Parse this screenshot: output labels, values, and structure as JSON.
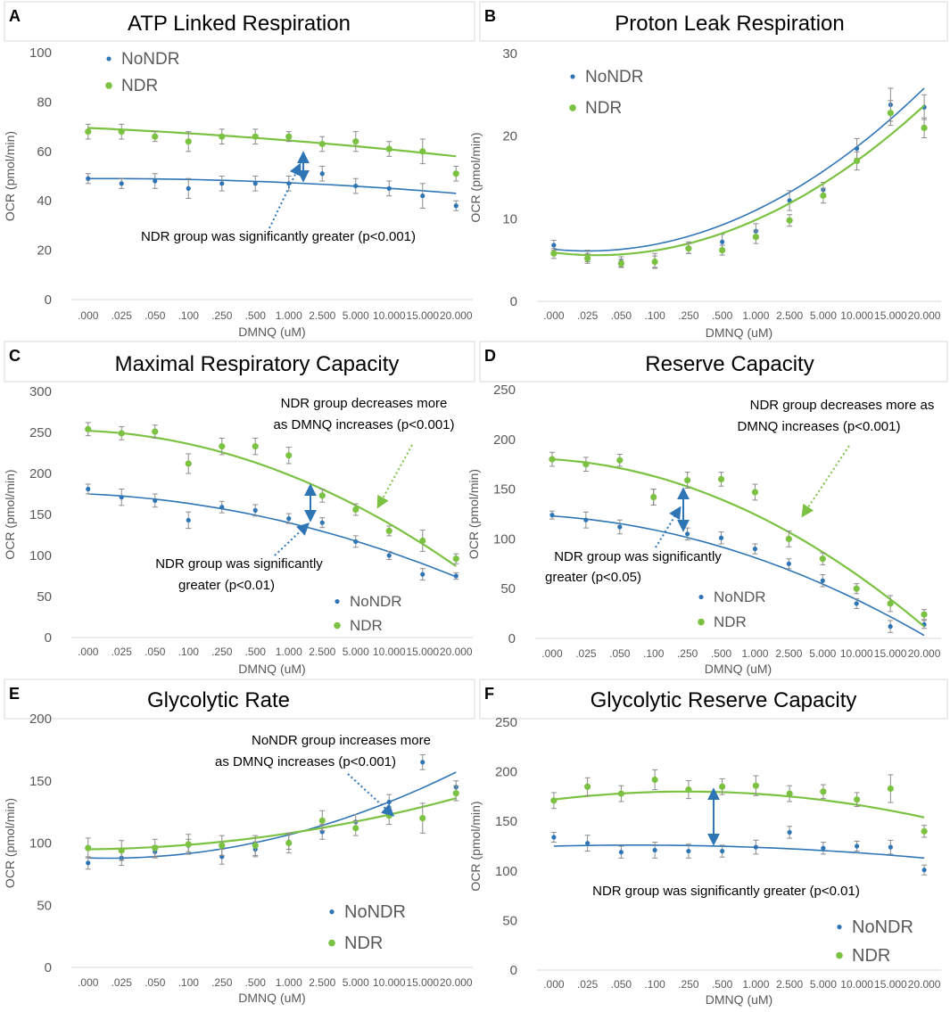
{
  "figure": {
    "xlabel": "DMNQ (uM)",
    "ylabel": "OCR (pmol/min)",
    "categories": [
      ".000",
      ".025",
      ".050",
      ".100",
      ".250",
      ".500",
      "1.000",
      "2.500",
      "5.000",
      "10.000",
      "15.000",
      "20.000"
    ],
    "legend": [
      "NoNDR",
      "NDR"
    ],
    "colors": {
      "NoNDR": "#2e75b6",
      "NDR": "#7cc242",
      "text": "#333333",
      "axis": "#595959",
      "errorbar": "#8c8c8c",
      "panelBorder": "#d9d9d9"
    }
  },
  "chart_data": [
    {
      "panel": "A",
      "type": "scatter",
      "title": "ATP Linked Respiration",
      "ylim": [
        0,
        100
      ],
      "yticks": [
        0,
        20,
        40,
        60,
        80,
        100
      ],
      "series": [
        {
          "name": "NoNDR",
          "values": [
            49,
            47,
            48,
            45,
            47,
            47,
            47,
            51,
            46,
            45,
            42,
            38
          ],
          "errors": [
            2,
            2,
            3,
            4,
            3,
            3,
            3,
            3,
            3,
            3,
            5,
            2
          ],
          "trend": [
            49,
            43
          ]
        },
        {
          "name": "NDR",
          "values": [
            68,
            68,
            66,
            64,
            66,
            66,
            66,
            63,
            64,
            61,
            60,
            51
          ],
          "errors": [
            3,
            3,
            2,
            4,
            3,
            3,
            2,
            3,
            4,
            3,
            5,
            3
          ],
          "trend": [
            69.5,
            58
          ]
        }
      ],
      "annotations": [
        {
          "text": "NDR group was significantly greater (p<0.001)"
        }
      ]
    },
    {
      "panel": "B",
      "type": "scatter",
      "title": "Proton Leak Respiration",
      "ylim": [
        0,
        30
      ],
      "yticks": [
        0,
        10,
        20,
        30
      ],
      "series": [
        {
          "name": "NoNDR",
          "values": [
            6.8,
            5.5,
            4.8,
            4.9,
            6.5,
            7.2,
            8.5,
            12.2,
            13.5,
            18.5,
            23.8,
            23.5
          ],
          "errors": [
            0.6,
            0.7,
            0.6,
            0.9,
            0.7,
            0.9,
            0.9,
            1.2,
            0.9,
            1.2,
            2.0,
            1.5
          ],
          "trend": [
            6.3,
            25.8
          ]
        },
        {
          "name": "NDR",
          "values": [
            5.8,
            5.2,
            4.6,
            4.8,
            6.4,
            6.2,
            7.8,
            9.8,
            12.8,
            17.0,
            22.8,
            21.0
          ],
          "errors": [
            0.6,
            0.6,
            0.5,
            0.7,
            0.6,
            0.6,
            0.8,
            0.7,
            0.9,
            1.1,
            1.5,
            1.2
          ],
          "trend": [
            5.9,
            23.7
          ]
        }
      ],
      "legendPlacement": "top-left"
    },
    {
      "panel": "C",
      "type": "scatter",
      "title": "Maximal Respiratory Capacity",
      "ylim": [
        0,
        300
      ],
      "yticks": [
        0,
        50,
        100,
        150,
        200,
        250,
        300
      ],
      "series": [
        {
          "name": "NoNDR",
          "values": [
            181,
            171,
            167,
            143,
            159,
            155,
            145,
            140,
            117,
            100,
            77,
            75
          ],
          "errors": [
            6,
            10,
            8,
            10,
            7,
            7,
            6,
            6,
            7,
            5,
            7,
            4
          ],
          "trend": [
            175,
            74
          ]
        },
        {
          "name": "NDR",
          "values": [
            254,
            249,
            251,
            212,
            233,
            233,
            222,
            173,
            156,
            130,
            118,
            96
          ],
          "errors": [
            8,
            8,
            8,
            12,
            10,
            10,
            10,
            8,
            7,
            6,
            13,
            6
          ],
          "trend": [
            252,
            87
          ]
        }
      ],
      "annotations": [
        {
          "text": "NDR group decreases more"
        },
        {
          "text": "as DMNQ increases (p<0.001)"
        },
        {
          "text": "NDR group was significantly"
        },
        {
          "text": "greater (p<0.01)"
        }
      ]
    },
    {
      "panel": "D",
      "type": "scatter",
      "title": "Reserve Capacity",
      "ylim": [
        0,
        250
      ],
      "yticks": [
        0,
        50,
        100,
        150,
        200,
        250
      ],
      "series": [
        {
          "name": "NoNDR",
          "values": [
            124,
            119,
            112,
            142,
            105,
            101,
            90,
            75,
            58,
            35,
            12,
            14
          ],
          "errors": [
            4,
            8,
            7,
            8,
            6,
            6,
            5,
            5,
            6,
            5,
            6,
            4
          ],
          "trend": [
            123,
            3
          ]
        },
        {
          "name": "NDR",
          "values": [
            180,
            175,
            179,
            142,
            159,
            160,
            147,
            100,
            80,
            50,
            35,
            24
          ],
          "errors": [
            7,
            7,
            6,
            8,
            8,
            7,
            8,
            8,
            6,
            5,
            8,
            5
          ],
          "trend": [
            180,
            12
          ]
        }
      ],
      "annotations": [
        {
          "text": "NDR group decreases more as"
        },
        {
          "text": "DMNQ increases (p<0.001)"
        },
        {
          "text": "NDR group was significantly"
        },
        {
          "text": "greater (p<0.05)"
        }
      ]
    },
    {
      "panel": "E",
      "type": "scatter",
      "title": "Glycolytic Rate",
      "ylim": [
        0,
        200
      ],
      "yticks": [
        0,
        50,
        100,
        150,
        200
      ],
      "series": [
        {
          "name": "NoNDR",
          "values": [
            84,
            88,
            93,
            98,
            89,
            95,
            101,
            109,
            117,
            133,
            165,
            145
          ],
          "errors": [
            5,
            6,
            5,
            5,
            6,
            6,
            6,
            6,
            6,
            6,
            6,
            5
          ],
          "trend": [
            88,
            157
          ]
        },
        {
          "name": "NDR",
          "values": [
            96,
            94,
            96,
            99,
            98,
            98,
            100,
            118,
            112,
            122,
            120,
            140
          ],
          "errors": [
            8,
            8,
            7,
            8,
            8,
            8,
            8,
            8,
            6,
            7,
            12,
            6
          ],
          "trend": [
            95,
            136
          ]
        }
      ],
      "annotations": [
        {
          "text": "NoNDR group increases more"
        },
        {
          "text": "as DMNQ increases (p<0.001)"
        }
      ]
    },
    {
      "panel": "F",
      "type": "scatter",
      "title": "Glycolytic Reserve Capacity",
      "ylim": [
        0,
        250
      ],
      "yticks": [
        0,
        50,
        100,
        150,
        200,
        250
      ],
      "series": [
        {
          "name": "NoNDR",
          "values": [
            134,
            128,
            119,
            121,
            120,
            120,
            124,
            139,
            123,
            125,
            124,
            101
          ],
          "errors": [
            5,
            8,
            6,
            8,
            7,
            6,
            7,
            6,
            6,
            5,
            7,
            5
          ],
          "trend": [
            125,
            113
          ]
        },
        {
          "name": "NDR",
          "values": [
            171,
            185,
            178,
            192,
            182,
            185,
            186,
            178,
            180,
            172,
            183,
            140
          ],
          "errors": [
            8,
            9,
            8,
            10,
            9,
            8,
            10,
            8,
            7,
            7,
            14,
            6
          ],
          "trend": [
            172,
            154
          ]
        }
      ],
      "annotations": [
        {
          "text": "NDR group was significantly greater (p<0.01)"
        }
      ]
    }
  ]
}
